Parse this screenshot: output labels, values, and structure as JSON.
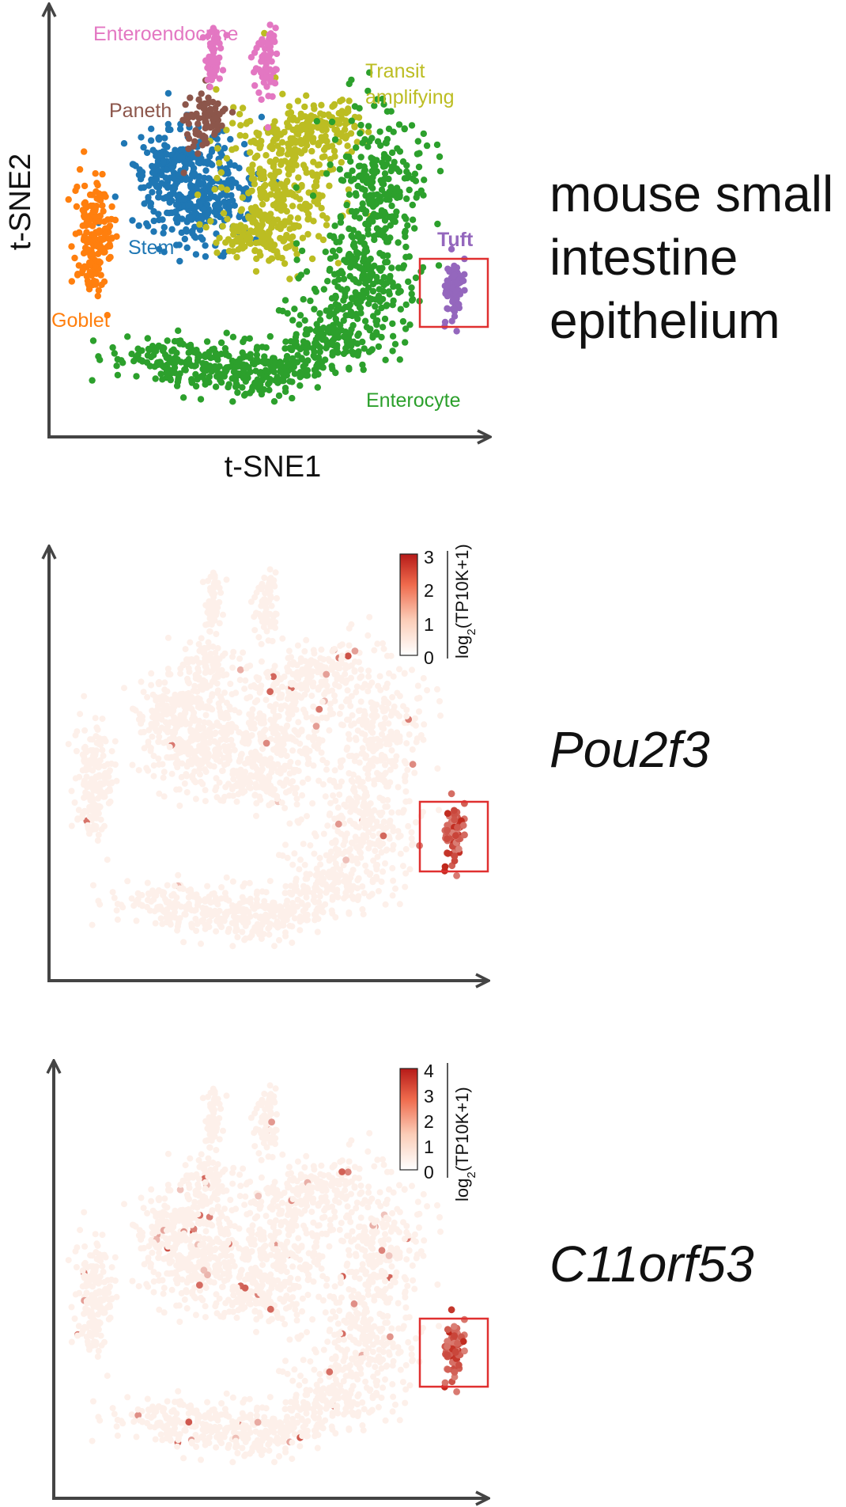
{
  "side_titles": {
    "main_line1": "mouse small",
    "main_line2": "intestine",
    "main_line3": "epithelium",
    "gene1": "Pou2f3",
    "gene2": "C11orf53"
  },
  "colors": {
    "Stem": "#1f77b4",
    "Transit amplifying": "#bcbd22",
    "Enterocyte": "#2ca02c",
    "Goblet": "#ff7f0e",
    "Paneth": "#8c564b",
    "Enteroendocrine": "#e377c2",
    "Tuft": "#9467bd",
    "highlight_box": "#e03030",
    "expr_low": "#fdf0ea",
    "expr_high": "#c0281c"
  },
  "chart_data": [
    {
      "type": "scatter",
      "xlabel": "t-SNE1",
      "ylabel": "t-SNE2",
      "series": [
        {
          "name": "Stem"
        },
        {
          "name": "Transit amplifying"
        },
        {
          "name": "Enterocyte"
        },
        {
          "name": "Goblet"
        },
        {
          "name": "Paneth"
        },
        {
          "name": "Enteroendocrine"
        },
        {
          "name": "Tuft"
        }
      ],
      "labels": [
        "Enteroendocrine",
        "Transit",
        "amplifying",
        "Paneth",
        "Stem",
        "Goblet",
        "Tuft",
        "Enterocyte"
      ]
    },
    {
      "type": "scatter",
      "gene": "Pou2f3",
      "colorbar": {
        "label": "log2(TP10K+1)",
        "label_main": "log",
        "label_sub": "2",
        "label_tail": "(TP10K+1)",
        "ticks": [
          0,
          1,
          2,
          3
        ],
        "range": [
          0,
          3
        ]
      }
    },
    {
      "type": "scatter",
      "gene": "C11orf53",
      "colorbar": {
        "label": "log2(TP10K+1)",
        "label_main": "log",
        "label_sub": "2",
        "label_tail": "(TP10K+1)",
        "ticks": [
          0,
          1,
          2,
          3,
          4
        ],
        "range": [
          0,
          4
        ]
      }
    }
  ]
}
